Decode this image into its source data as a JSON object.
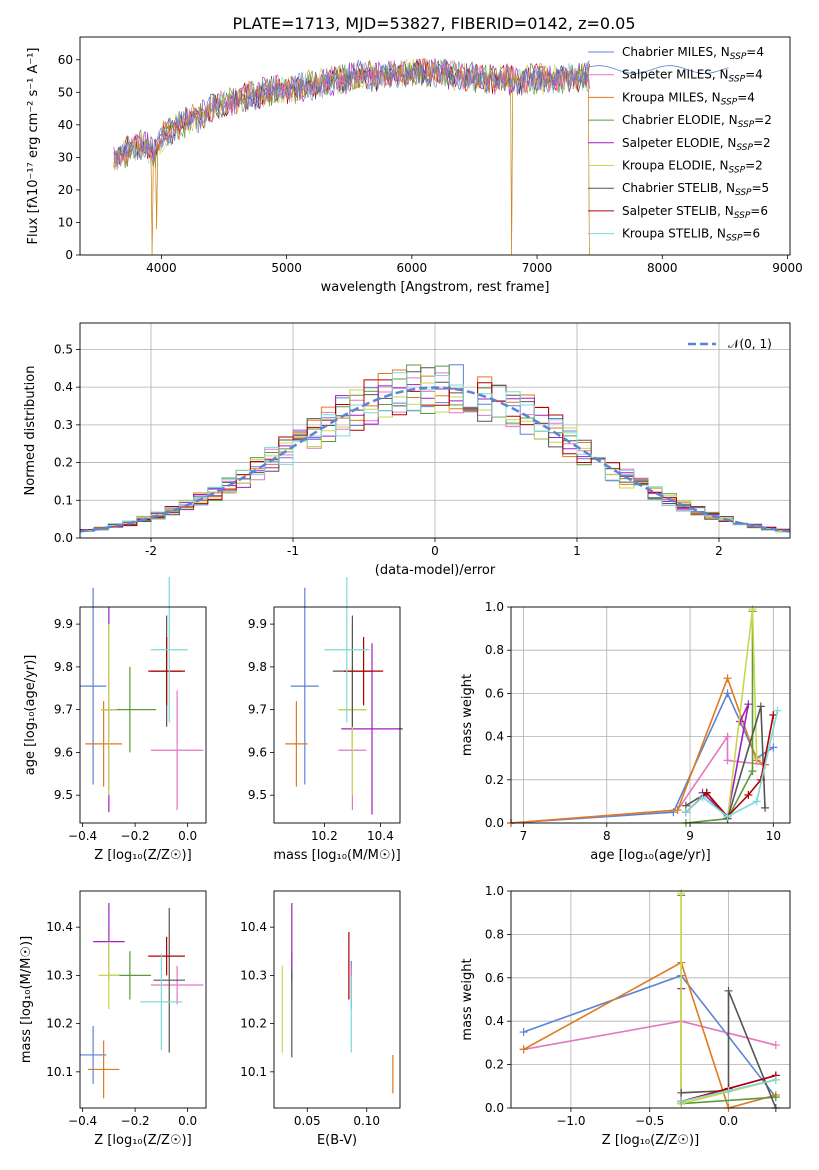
{
  "figure_title": "PLATE=1713, MJD=53827, FIBERID=0142, z=0.05",
  "colors": {
    "Chabrier MILES": "#5b84d6",
    "Salpeter MILES": "#e377c2",
    "Kroupa MILES": "#e07a1f",
    "Chabrier ELODIE": "#5a9a3a",
    "Salpeter ELODIE": "#a020c0",
    "Kroupa ELODIE": "#c8d84a",
    "Chabrier STELIB": "#555555",
    "Salpeter STELIB": "#b00000",
    "Kroupa STELIB": "#7fd8d8"
  },
  "chart_data": [
    {
      "id": "spectrum",
      "type": "line",
      "xlabel": "wavelength [Angstrom, rest frame]",
      "ylabel": "Flux [fλ10⁻¹⁷ erg cm⁻² s⁻¹ A⁻¹]",
      "xlim": [
        3350,
        9020
      ],
      "ylim": [
        0,
        67
      ],
      "xticks": [
        4000,
        5000,
        6000,
        7000,
        8000,
        9000
      ],
      "yticks": [
        0,
        10,
        20,
        30,
        40,
        50,
        60
      ],
      "legend": [
        "Chabrier MILES, N_SSP=4",
        "Salpeter MILES, N_SSP=4",
        "Kroupa MILES, N_SSP=4",
        "Chabrier ELODIE, N_SSP=2",
        "Salpeter ELODIE, N_SSP=2",
        "Kroupa ELODIE, N_SSP=2",
        "Chabrier STELIB, N_SSP=5",
        "Salpeter STELIB, N_SSP=6",
        "Kroupa STELIB, N_SSP=6"
      ],
      "legend_names": [
        "Chabrier MILES",
        "Salpeter MILES",
        "Kroupa MILES",
        "Chabrier ELODIE",
        "Salpeter ELODIE",
        "Kroupa ELODIE",
        "Chabrier STELIB",
        "Salpeter STELIB",
        "Kroupa STELIB"
      ],
      "continuum": [
        [
          3620,
          30
        ],
        [
          3700,
          31
        ],
        [
          3800,
          34
        ],
        [
          3900,
          33
        ],
        [
          3950,
          31
        ],
        [
          4000,
          36
        ],
        [
          4100,
          39
        ],
        [
          4200,
          41
        ],
        [
          4300,
          42
        ],
        [
          4400,
          45
        ],
        [
          4600,
          48
        ],
        [
          4800,
          50
        ],
        [
          5000,
          51
        ],
        [
          5200,
          52
        ],
        [
          5400,
          54
        ],
        [
          5600,
          55
        ],
        [
          5800,
          55
        ],
        [
          6000,
          56
        ],
        [
          6200,
          56
        ],
        [
          6400,
          55
        ],
        [
          6600,
          54
        ],
        [
          6800,
          54
        ],
        [
          7000,
          54
        ],
        [
          7200,
          54
        ],
        [
          7420,
          55
        ]
      ],
      "drops": [
        {
          "x": 3925,
          "to": 0
        },
        {
          "x": 3960,
          "to": 8
        },
        {
          "x": 6800,
          "to": 0
        },
        {
          "x": 7420,
          "to": 0
        }
      ],
      "grid": false,
      "legend_position": "right"
    },
    {
      "id": "residuals",
      "type": "histogram",
      "xlabel": "(data-model)/error",
      "ylabel": "Normed distribution",
      "xlim": [
        -2.5,
        2.5
      ],
      "ylim": [
        0,
        0.57
      ],
      "xticks": [
        -2,
        -1,
        0,
        1,
        2
      ],
      "yticks": [
        0.0,
        0.1,
        0.2,
        0.3,
        0.4,
        0.5
      ],
      "bin_width": 0.1,
      "reference": {
        "label": "𝒩(0, 1)",
        "mean": 0,
        "sigma": 1,
        "color": "#5b84d6"
      },
      "grid": true,
      "legend_position": "top-right"
    },
    {
      "id": "Z_vs_age",
      "type": "errorbar",
      "xlabel": "Z [log₁₀(Z/Z☉)]",
      "ylabel": "age  [log₁₀(age/yr)]",
      "xlim": [
        -0.41,
        0.07
      ],
      "ylim": [
        9.435,
        9.94
      ],
      "xticks": [
        -0.4,
        -0.2,
        0.0
      ],
      "xtick_labels": [
        "−0.4",
        "−0.2",
        "0.0"
      ],
      "yticks": [
        9.5,
        9.6,
        9.7,
        9.8,
        9.9
      ],
      "points": [
        {
          "name": "Chabrier MILES",
          "x": -0.36,
          "xerr": 0.05,
          "y": 9.755,
          "yerr": 0.23
        },
        {
          "name": "Salpeter MILES",
          "x": -0.04,
          "xerr": 0.1,
          "y": 9.605,
          "yerr": 0.14
        },
        {
          "name": "Kroupa MILES",
          "x": -0.32,
          "xerr": 0.07,
          "y": 9.62,
          "yerr": 0.1
        },
        {
          "name": "Chabrier ELODIE",
          "x": -0.22,
          "xerr": 0.1,
          "y": 9.7,
          "yerr": 0.1
        },
        {
          "name": "Salpeter ELODIE",
          "x": -0.3,
          "xerr": 0.03,
          "y": 9.7,
          "yerr": 0.24
        },
        {
          "name": "Kroupa ELODIE",
          "x": -0.3,
          "xerr": 0.03,
          "y": 9.7,
          "yerr": 0.2
        },
        {
          "name": "Chabrier STELIB",
          "x": -0.08,
          "xerr": 0.06,
          "y": 9.79,
          "yerr": 0.13
        },
        {
          "name": "Salpeter STELIB",
          "x": -0.08,
          "xerr": 0.07,
          "y": 9.79,
          "yerr": 0.08
        },
        {
          "name": "Kroupa STELIB",
          "x": -0.07,
          "xerr": 0.07,
          "y": 9.84,
          "yerr": 0.17
        }
      ]
    },
    {
      "id": "mass_vs_age",
      "type": "errorbar",
      "xlabel": "mass [log₁₀(M/M☉)]",
      "ylabel": "",
      "xlim": [
        10.02,
        10.47
      ],
      "ylim": [
        9.435,
        9.94
      ],
      "xticks": [
        10.2,
        10.4
      ],
      "yticks": [
        9.5,
        9.6,
        9.7,
        9.8,
        9.9
      ],
      "points": [
        {
          "name": "Chabrier MILES",
          "x": 10.13,
          "xerr": 0.05,
          "y": 9.755,
          "yerr": 0.23
        },
        {
          "name": "Salpeter MILES",
          "x": 10.3,
          "xerr": 0.05,
          "y": 9.605,
          "yerr": 0.14
        },
        {
          "name": "Kroupa MILES",
          "x": 10.1,
          "xerr": 0.04,
          "y": 9.62,
          "yerr": 0.1
        },
        {
          "name": "Chabrier ELODIE",
          "x": 10.3,
          "xerr": 0.05,
          "y": 9.7,
          "yerr": 0.1
        },
        {
          "name": "Salpeter ELODIE",
          "x": 10.37,
          "xerr": 0.11,
          "y": 9.655,
          "yerr": 0.2
        },
        {
          "name": "Kroupa ELODIE",
          "x": 10.3,
          "xerr": 0.05,
          "y": 9.7,
          "yerr": 0.2
        },
        {
          "name": "Chabrier STELIB",
          "x": 10.3,
          "xerr": 0.07,
          "y": 9.79,
          "yerr": 0.13
        },
        {
          "name": "Salpeter STELIB",
          "x": 10.34,
          "xerr": 0.07,
          "y": 9.79,
          "yerr": 0.08
        },
        {
          "name": "Kroupa STELIB",
          "x": 10.28,
          "xerr": 0.08,
          "y": 9.84,
          "yerr": 0.17
        }
      ]
    },
    {
      "id": "age_weights",
      "type": "line",
      "xlabel": "age  [log₁₀(age/yr)]",
      "ylabel": "mass weight",
      "xlim": [
        6.85,
        10.2
      ],
      "ylim": [
        0,
        1.0
      ],
      "xticks": [
        7,
        8,
        9,
        10
      ],
      "yticks": [
        0.0,
        0.2,
        0.4,
        0.6,
        0.8,
        1.0
      ],
      "grid": true,
      "series": [
        {
          "name": "Chabrier MILES",
          "points": [
            [
              6.85,
              0
            ],
            [
              8.8,
              0.05
            ],
            [
              9.45,
              0.6
            ],
            [
              9.8,
              0.3
            ],
            [
              10.0,
              0.35
            ]
          ]
        },
        {
          "name": "Salpeter MILES",
          "points": [
            [
              6.85,
              0
            ],
            [
              8.85,
              0.06
            ],
            [
              9.45,
              0.4
            ],
            [
              9.45,
              0.29
            ],
            [
              9.9,
              0.27
            ]
          ]
        },
        {
          "name": "Kroupa MILES",
          "points": [
            [
              6.85,
              0
            ],
            [
              8.85,
              0.06
            ],
            [
              9.45,
              0.67
            ],
            [
              9.8,
              0.29
            ],
            [
              9.9,
              0.27
            ]
          ]
        },
        {
          "name": "Chabrier ELODIE",
          "points": [
            [
              8.95,
              0
            ],
            [
              9.45,
              0.02
            ],
            [
              9.75,
              0.24
            ],
            [
              9.75,
              0.98
            ]
          ]
        },
        {
          "name": "Salpeter ELODIE",
          "points": [
            [
              9.15,
              0.14
            ],
            [
              9.45,
              0.03
            ],
            [
              9.7,
              0.55
            ],
            [
              9.6,
              0.47
            ]
          ]
        },
        {
          "name": "Kroupa ELODIE",
          "points": [
            [
              9.45,
              0.02
            ],
            [
              9.75,
              0.99
            ],
            [
              9.8,
              0.3
            ]
          ]
        },
        {
          "name": "Chabrier STELIB",
          "points": [
            [
              8.95,
              0.08
            ],
            [
              9.2,
              0.14
            ],
            [
              9.45,
              0.02
            ],
            [
              9.85,
              0.54
            ],
            [
              9.9,
              0.07
            ]
          ]
        },
        {
          "name": "Salpeter STELIB",
          "points": [
            [
              8.95,
              0.05
            ],
            [
              9.2,
              0.14
            ],
            [
              9.45,
              0.03
            ],
            [
              9.7,
              0.13
            ],
            [
              9.85,
              0.2
            ],
            [
              10.0,
              0.5
            ]
          ]
        },
        {
          "name": "Kroupa STELIB",
          "points": [
            [
              8.95,
              0.05
            ],
            [
              9.15,
              0.12
            ],
            [
              9.45,
              0.03
            ],
            [
              9.8,
              0.1
            ],
            [
              10.05,
              0.52
            ]
          ]
        }
      ]
    },
    {
      "id": "Z_vs_mass",
      "type": "errorbar",
      "xlabel": "Z [log₁₀(Z/Z☉)]",
      "ylabel": "mass [log₁₀(M/M☉)]",
      "xlim": [
        -0.41,
        0.07
      ],
      "ylim": [
        10.025,
        10.475
      ],
      "xticks": [
        -0.4,
        -0.2,
        0.0
      ],
      "xtick_labels": [
        "−0.4",
        "−0.2",
        "0.0"
      ],
      "yticks": [
        10.1,
        10.2,
        10.3,
        10.4
      ],
      "points": [
        {
          "name": "Chabrier MILES",
          "x": -0.36,
          "xerr": 0.05,
          "y": 10.135,
          "yerr": 0.06
        },
        {
          "name": "Salpeter MILES",
          "x": -0.04,
          "xerr": 0.1,
          "y": 10.28,
          "yerr": 0.04
        },
        {
          "name": "Kroupa MILES",
          "x": -0.32,
          "xerr": 0.06,
          "y": 10.105,
          "yerr": 0.06
        },
        {
          "name": "Chabrier ELODIE",
          "x": -0.22,
          "xerr": 0.08,
          "y": 10.3,
          "yerr": 0.05
        },
        {
          "name": "Salpeter ELODIE",
          "x": -0.3,
          "xerr": 0.06,
          "y": 10.37,
          "yerr": 0.08
        },
        {
          "name": "Kroupa ELODIE",
          "x": -0.3,
          "xerr": 0.04,
          "y": 10.3,
          "yerr": 0.07
        },
        {
          "name": "Chabrier STELIB",
          "x": -0.07,
          "xerr": 0.06,
          "y": 10.29,
          "yerr": 0.15
        },
        {
          "name": "Salpeter STELIB",
          "x": -0.08,
          "xerr": 0.07,
          "y": 10.34,
          "yerr": 0.04
        },
        {
          "name": "Kroupa STELIB",
          "x": -0.1,
          "xerr": 0.08,
          "y": 10.245,
          "yerr": 0.1
        }
      ]
    },
    {
      "id": "ebv_vs_mass",
      "type": "errorbar",
      "xlabel": "E(B-V)",
      "ylabel": "",
      "xlim": [
        0.022,
        0.128
      ],
      "ylim": [
        10.025,
        10.475
      ],
      "xticks": [
        0.05,
        0.1
      ],
      "xtick_labels": [
        "0.05",
        "0.10"
      ],
      "yticks": [
        10.1,
        10.2,
        10.3,
        10.4
      ],
      "points": [
        {
          "name": "Chabrier MILES",
          "x": 0.087,
          "xerr": 0,
          "y": 10.28,
          "yerr": 0.05
        },
        {
          "name": "Salpeter MILES",
          "x": 0.087,
          "xerr": 0,
          "y": 10.28,
          "yerr": 0.04
        },
        {
          "name": "Kroupa MILES",
          "x": 0.122,
          "xerr": 0,
          "y": 10.095,
          "yerr": 0.04
        },
        {
          "name": "Chabrier ELODIE",
          "x": 0.037,
          "xerr": 0,
          "y": 10.3,
          "yerr": 0.05
        },
        {
          "name": "Salpeter ELODIE",
          "x": 0.037,
          "xerr": 0,
          "y": 10.37,
          "yerr": 0.08
        },
        {
          "name": "Kroupa ELODIE",
          "x": 0.029,
          "xerr": 0,
          "y": 10.23,
          "yerr": 0.09
        },
        {
          "name": "Chabrier STELIB",
          "x": 0.037,
          "xerr": 0,
          "y": 10.22,
          "yerr": 0.09
        },
        {
          "name": "Salpeter STELIB",
          "x": 0.085,
          "xerr": 0,
          "y": 10.32,
          "yerr": 0.07
        },
        {
          "name": "Kroupa STELIB",
          "x": 0.087,
          "xerr": 0,
          "y": 10.22,
          "yerr": 0.08
        }
      ]
    },
    {
      "id": "Z_weights",
      "type": "line",
      "xlabel": "Z [log₁₀(Z/Z☉)]",
      "ylabel": "mass weight",
      "xlim": [
        -1.38,
        0.39
      ],
      "ylim": [
        0,
        1.0
      ],
      "xticks": [
        -1.0,
        -0.5,
        0.0
      ],
      "xtick_labels": [
        "−1.0",
        "−0.5",
        "0.0"
      ],
      "yticks": [
        0.0,
        0.2,
        0.4,
        0.6,
        0.8,
        1.0
      ],
      "grid": true,
      "series": [
        {
          "name": "Chabrier MILES",
          "points": [
            [
              -1.3,
              0.35
            ],
            [
              -0.3,
              0.61
            ],
            [
              0.3,
              0.05
            ]
          ]
        },
        {
          "name": "Salpeter MILES",
          "points": [
            [
              -1.3,
              0.27
            ],
            [
              -0.3,
              0.4
            ],
            [
              0.3,
              0.29
            ]
          ]
        },
        {
          "name": "Kroupa MILES",
          "points": [
            [
              -1.3,
              0.27
            ],
            [
              -0.3,
              0.67
            ],
            [
              0.0,
              0.0
            ],
            [
              0.3,
              0.06
            ]
          ]
        },
        {
          "name": "Chabrier ELODIE",
          "points": [
            [
              -0.3,
              0.98
            ],
            [
              -0.3,
              0.02
            ],
            [
              0.3,
              0.05
            ]
          ]
        },
        {
          "name": "Salpeter ELODIE",
          "points": [
            [
              -0.3,
              0.55
            ],
            [
              -0.3,
              0.03
            ],
            [
              0.3,
              0.15
            ]
          ]
        },
        {
          "name": "Kroupa ELODIE",
          "points": [
            [
              -0.3,
              0.99
            ],
            [
              -0.3,
              0.02
            ],
            [
              0.3,
              0.13
            ]
          ]
        },
        {
          "name": "Chabrier STELIB",
          "points": [
            [
              -0.3,
              0.07
            ],
            [
              0.0,
              0.08
            ],
            [
              0.0,
              0.54
            ],
            [
              0.3,
              0.0
            ]
          ]
        },
        {
          "name": "Salpeter STELIB",
          "points": [
            [
              -0.3,
              0.03
            ],
            [
              0.0,
              0.09
            ],
            [
              0.3,
              0.15
            ]
          ]
        },
        {
          "name": "Kroupa STELIB",
          "points": [
            [
              -0.3,
              0.03
            ],
            [
              0.0,
              0.08
            ],
            [
              0.3,
              0.13
            ]
          ]
        }
      ]
    }
  ]
}
